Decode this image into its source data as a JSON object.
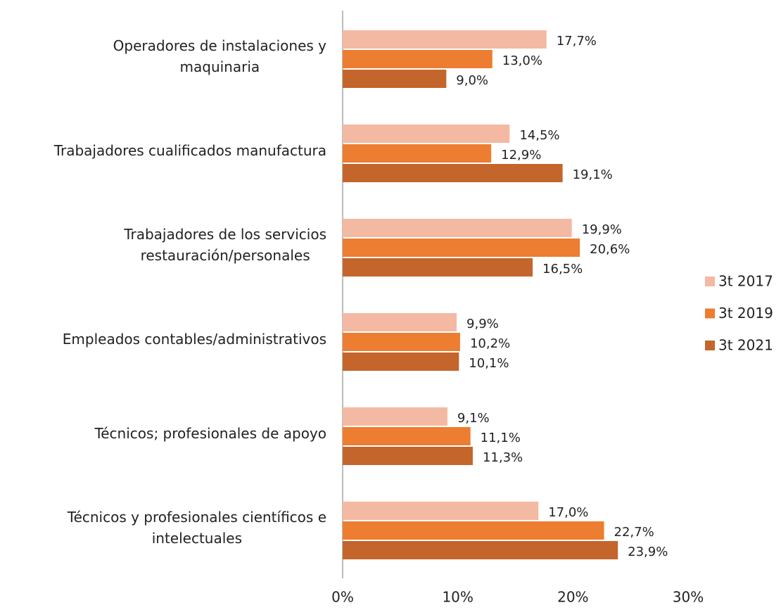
{
  "chart_data": {
    "type": "bar",
    "orientation": "horizontal",
    "categories": [
      "Operadores de instalaciones y\nmaquinaria",
      "Trabajadores cualificados manufactura",
      "Trabajadores de los servicios\nrestauración/personales",
      "Empleados contables/administrativos",
      "Técnicos; profesionales de apoyo",
      "Técnicos y profesionales científicos e\nintelectuales"
    ],
    "series": [
      {
        "name": "3t 2017",
        "color": "#f4b9a2",
        "values": [
          17.7,
          14.5,
          19.9,
          9.9,
          9.1,
          17.0
        ],
        "value_labels": [
          "17,7%",
          "14,5%",
          "19,9%",
          "9,9%",
          "9,1%",
          "17,0%"
        ]
      },
      {
        "name": "3t 2019",
        "color": "#ed7d31",
        "values": [
          13.0,
          12.9,
          20.6,
          10.2,
          11.1,
          22.7
        ],
        "value_labels": [
          "13,0%",
          "12,9%",
          "20,6%",
          "10,2%",
          "11,1%",
          "22,7%"
        ]
      },
      {
        "name": "3t 2021",
        "color": "#c4652b",
        "values": [
          9.0,
          19.1,
          16.5,
          10.1,
          11.3,
          23.9
        ],
        "value_labels": [
          "9,0%",
          "19,1%",
          "16,5%",
          "10,1%",
          "11,3%",
          "23,9%"
        ]
      }
    ],
    "xlim": [
      0,
      30
    ],
    "xticks": [
      {
        "value": 0,
        "label": "0%"
      },
      {
        "value": 10,
        "label": "10%"
      },
      {
        "value": 20,
        "label": "20%"
      },
      {
        "value": 30,
        "label": "30%"
      }
    ],
    "legend": "right"
  }
}
